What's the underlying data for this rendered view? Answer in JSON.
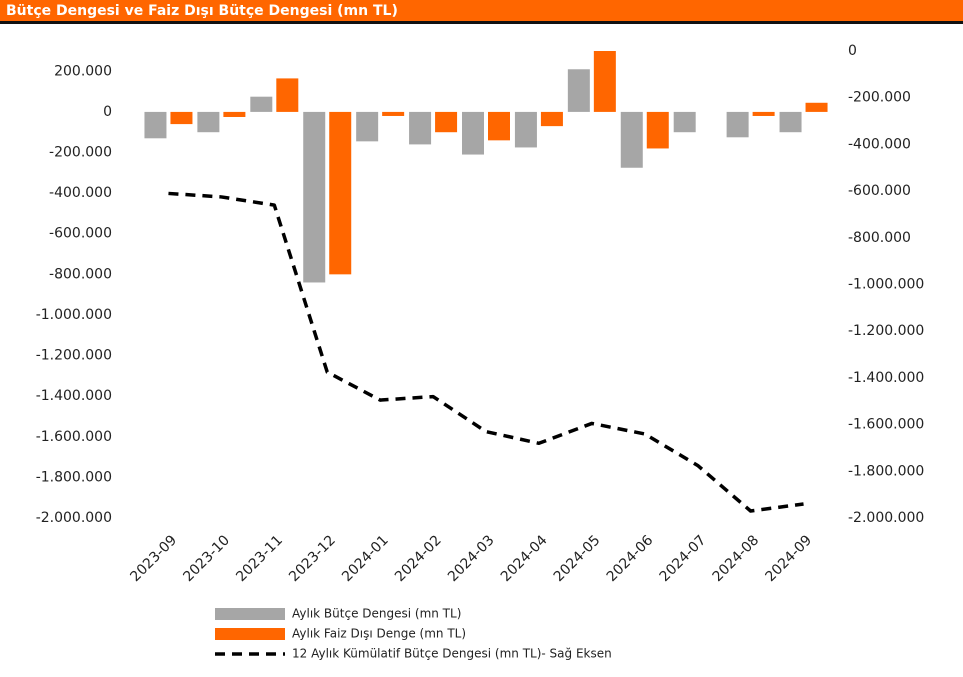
{
  "chart_data": {
    "type": "bar",
    "title": "Bütçe Dengesi ve Faiz Dışı Bütçe Dengesi (mn TL)",
    "categories": [
      "2023-09",
      "2023-10",
      "2023-11",
      "2023-12",
      "2024-01",
      "2024-02",
      "2024-03",
      "2024-04",
      "2024-05",
      "2024-06",
      "2024-07",
      "2024-08",
      "2024-09"
    ],
    "series": [
      {
        "name": "Aylık Bütçe Dengesi (mn TL)",
        "type": "bar",
        "color": "#a6a6a6",
        "values": [
          -130000,
          -100000,
          75000,
          -840000,
          -145000,
          -160000,
          -210000,
          -175000,
          210000,
          -275000,
          -100000,
          -125000,
          -100000
        ]
      },
      {
        "name": "Aylık Faiz Dışı Denge (mn TL)",
        "type": "bar",
        "color": "#ff6600",
        "values": [
          -60000,
          -25000,
          165000,
          -800000,
          -20000,
          -100000,
          -140000,
          -70000,
          300000,
          -180000,
          0,
          -20000,
          45000
        ]
      },
      {
        "name": "12 Aylık Kümülatif Bütçe Dengesi (mn TL)- Sağ Eksen",
        "type": "line",
        "axis": "y2",
        "color": "#000000",
        "dashed": true,
        "values": [
          -610000,
          -625000,
          -660000,
          -1375000,
          -1495000,
          -1480000,
          -1630000,
          -1680000,
          -1595000,
          -1640000,
          -1775000,
          -1970000,
          -1940000
        ]
      }
    ],
    "ylim": [
      -2000000,
      300000
    ],
    "yticks": [
      {
        "value": 200000,
        "label": "200.000"
      },
      0,
      {
        "value": -200000,
        "label": "-200.000"
      },
      {
        "value": -400000,
        "label": "-400.000"
      },
      {
        "value": -600000,
        "label": "-600.000"
      },
      {
        "value": -800000,
        "label": "-800.000"
      },
      {
        "value": -1000000,
        "label": "-1.000.000"
      },
      {
        "value": -1200000,
        "label": "-1.200.000"
      },
      {
        "value": -1400000,
        "label": "-1.400.000"
      },
      {
        "value": -1600000,
        "label": "-1.600.000"
      },
      {
        "value": -1800000,
        "label": "-1.800.000"
      },
      {
        "value": -2000000,
        "label": "-2.000.000"
      }
    ],
    "y2lim": [
      -2000000,
      0
    ],
    "y2ticks": [
      0,
      {
        "value": -200000,
        "label": "-200.000"
      },
      {
        "value": -400000,
        "label": "-400.000"
      },
      {
        "value": -600000,
        "label": "-600.000"
      },
      {
        "value": -800000,
        "label": "-800.000"
      },
      {
        "value": -1000000,
        "label": "-1.000.000"
      },
      {
        "value": -1200000,
        "label": "-1.200.000"
      },
      {
        "value": -1400000,
        "label": "-1.400.000"
      },
      {
        "value": -1600000,
        "label": "-1.600.000"
      },
      {
        "value": -1800000,
        "label": "-1.800.000"
      },
      {
        "value": -2000000,
        "label": "-2.000.000"
      }
    ],
    "grid": false,
    "legend": "bottom"
  }
}
